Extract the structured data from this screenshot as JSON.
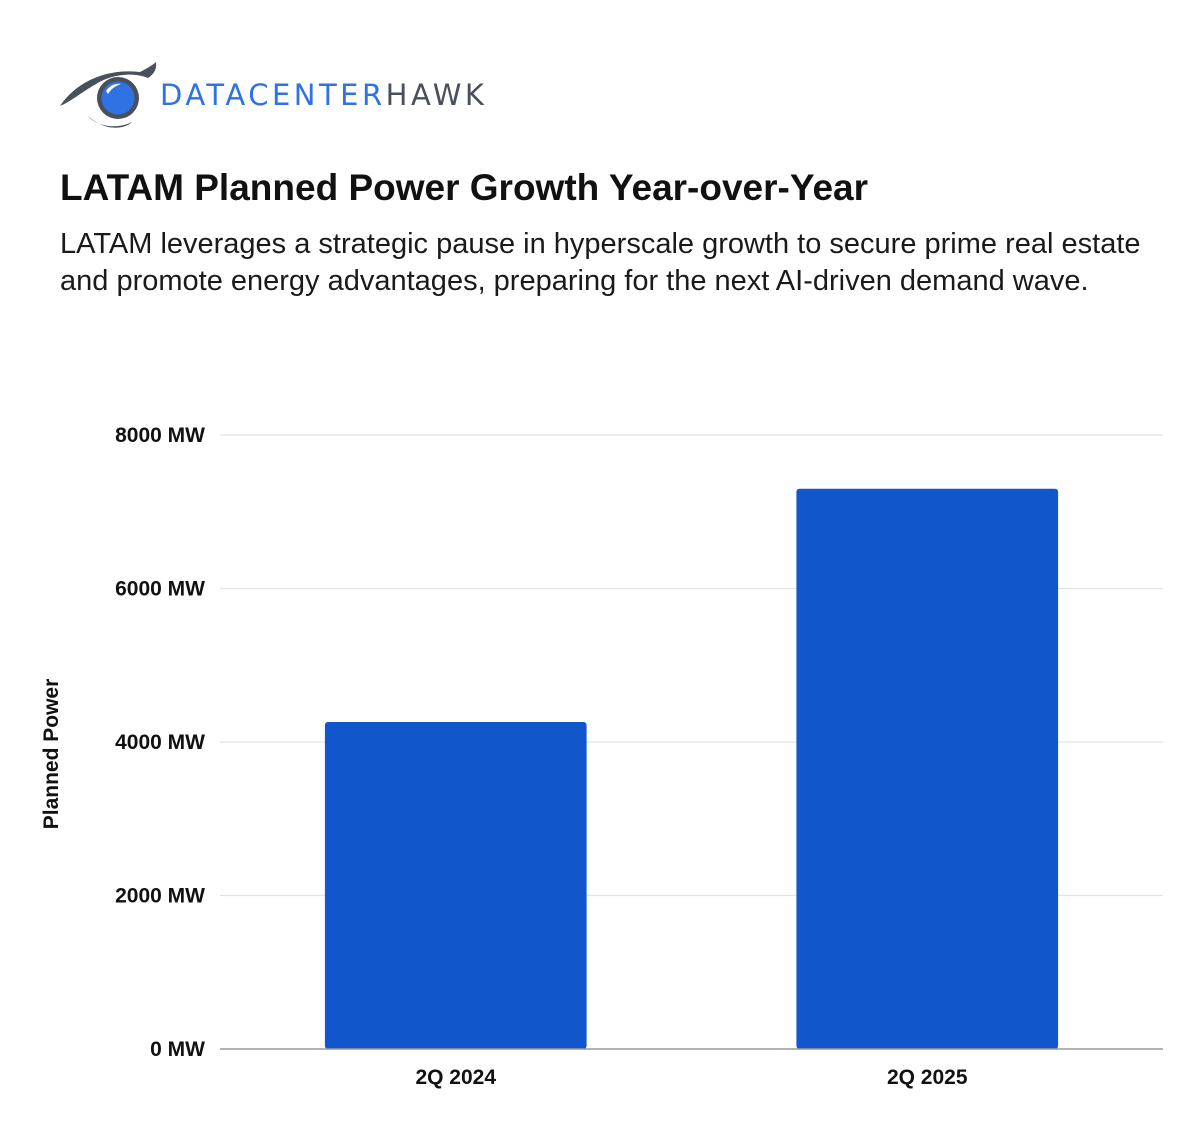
{
  "brand": {
    "name_part1": "DATACENTER",
    "name_part2": "HAWK",
    "icon": "hawk-eye-icon",
    "color_primary": "#2f72e3",
    "color_secondary": "#4a4f5c"
  },
  "header": {
    "title": "LATAM Planned Power Growth Year-over-Year",
    "subtitle": "LATAM leverages a strategic pause in hyperscale growth to secure prime real estate and promote energy advantages, preparing for the next AI-driven demand wave."
  },
  "chart_data": {
    "type": "bar",
    "categories": [
      "2Q 2024",
      "2Q 2025"
    ],
    "values": [
      4260,
      7300
    ],
    "xlabel": "",
    "ylabel": "Planned Power",
    "ylim": [
      0,
      8000
    ],
    "y_ticks": [
      0,
      2000,
      4000,
      6000,
      8000
    ],
    "y_tick_labels": [
      "0 MW",
      "2000 MW",
      "4000 MW",
      "6000 MW",
      "8000 MW"
    ],
    "bar_color": "#1256cc",
    "grid": true,
    "legend": "none"
  }
}
